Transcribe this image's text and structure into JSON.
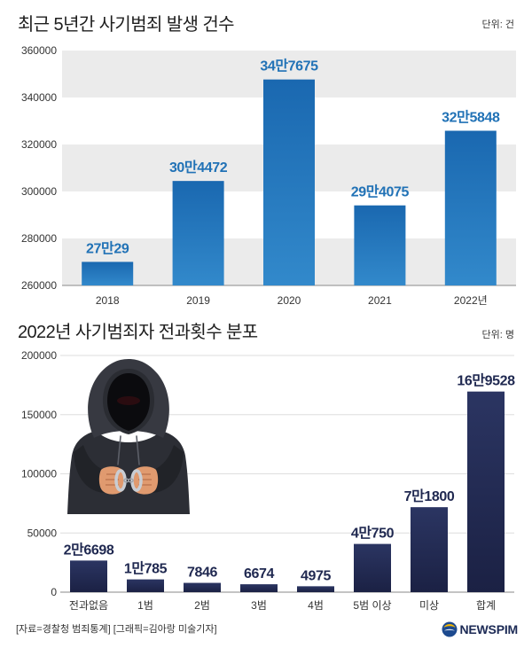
{
  "chart_data": [
    {
      "type": "bar",
      "title": "최근 5년간 사기범죄 발생 건수",
      "unit": "단위: 건",
      "categories": [
        "2018",
        "2019",
        "2020",
        "2021",
        "2022년"
      ],
      "values": [
        270029,
        304472,
        347675,
        294075,
        325848
      ],
      "data_labels": [
        "27만29",
        "30만4472",
        "34만7675",
        "29만4075",
        "32만5848"
      ],
      "ylim": [
        260000,
        360000
      ],
      "yticks": [
        360000,
        340000,
        320000,
        300000,
        280000,
        260000
      ],
      "grid": true,
      "colors": {
        "bar_top": "#1a68b0",
        "bar_bottom": "#3289cb",
        "label": "#2172b6",
        "grid": "#ebebeb",
        "axis": "#8a8a8a"
      }
    },
    {
      "type": "bar",
      "title": "2022년 사기범죄자 전과횟수 분포",
      "unit": "단위: 명",
      "categories": [
        "전과없음",
        "1범",
        "2범",
        "3범",
        "4범",
        "5범 이상",
        "미상",
        "합계"
      ],
      "values": [
        26698,
        10785,
        7846,
        6674,
        4975,
        40750,
        71800,
        169528
      ],
      "data_labels": [
        "2만6698",
        "1만785",
        "7846",
        "6674",
        "4975",
        "4만750",
        "7만1800",
        "16만9528"
      ],
      "ylim": [
        0,
        200000
      ],
      "yticks": [
        200000,
        150000,
        100000,
        50000,
        0
      ],
      "grid": true,
      "colors": {
        "bar_top": "#2b3562",
        "bar_bottom": "#1b2144",
        "label": "#1f2850",
        "grid": "#dedede",
        "axis": "#8a8a8a"
      }
    }
  ],
  "illustration": {
    "icon": "hooded-handcuffed-figure-icon"
  },
  "footer": {
    "source_credit": "[자료=경찰청 범죄통계] [그래픽=김아랑 미술기자]",
    "logo_text": "NEWSPIM",
    "logo_icon": "newspim-logo-icon"
  }
}
